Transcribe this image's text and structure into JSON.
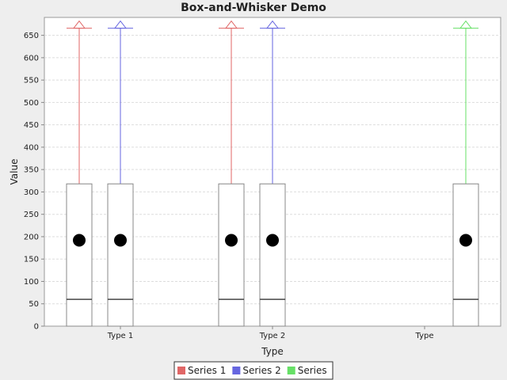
{
  "chart_data": {
    "type": "boxplot",
    "title": "Box-and-Whisker Demo",
    "xlabel": "Type",
    "ylabel": "Value",
    "ylim": [
      0,
      690
    ],
    "yticks": [
      0,
      50,
      100,
      150,
      200,
      250,
      300,
      350,
      400,
      450,
      500,
      550,
      600,
      650
    ],
    "grid": true,
    "legend_position": "bottom",
    "categories": [
      "Type 1",
      "Type 2",
      "Type"
    ],
    "series": [
      {
        "name": "Series 1",
        "color": "#e06666",
        "boxes": [
          {
            "category": "Type 1",
            "min": 0,
            "q1": 0,
            "median": 60,
            "q3": 318,
            "max": 666,
            "mean": 192,
            "outlier_high": 666
          },
          {
            "category": "Type 2",
            "min": 0,
            "q1": 0,
            "median": 60,
            "q3": 318,
            "max": 666,
            "mean": 192,
            "outlier_high": 666
          }
        ]
      },
      {
        "name": "Series 2",
        "color": "#6666e0",
        "boxes": [
          {
            "category": "Type 1",
            "min": 0,
            "q1": 0,
            "median": 60,
            "q3": 318,
            "max": 666,
            "mean": 192,
            "outlier_high": 666
          },
          {
            "category": "Type 2",
            "min": 0,
            "q1": 0,
            "median": 60,
            "q3": 318,
            "max": 666,
            "mean": 192,
            "outlier_high": 666
          }
        ]
      },
      {
        "name": "Series",
        "color": "#66e066",
        "boxes": [
          {
            "category": "Type",
            "min": 0,
            "q1": 0,
            "median": 60,
            "q3": 318,
            "max": 666,
            "mean": 192,
            "outlier_high": 666
          }
        ]
      }
    ]
  }
}
